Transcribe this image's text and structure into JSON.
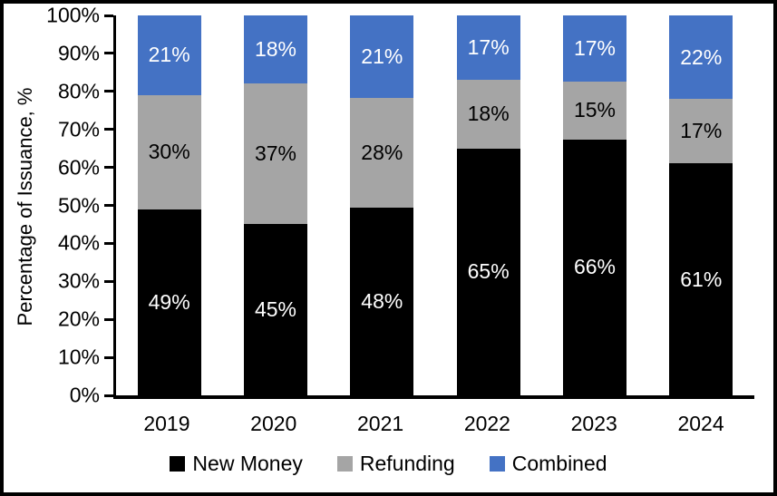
{
  "chart_data": {
    "type": "bar",
    "stacked": true,
    "percent_stacked": true,
    "title": "",
    "xlabel": "",
    "ylabel": "Percentage of Issuance, %",
    "categories": [
      "2019",
      "2020",
      "2021",
      "2022",
      "2023",
      "2024"
    ],
    "series": [
      {
        "name": "New Money",
        "color": "#000000",
        "label_color": "#ffffff",
        "values": [
          49,
          45,
          48,
          65,
          66,
          61
        ]
      },
      {
        "name": "Refunding",
        "color": "#A5A5A5",
        "label_color": "#000000",
        "values": [
          30,
          37,
          28,
          18,
          15,
          17
        ]
      },
      {
        "name": "Combined",
        "color": "#4472C4",
        "label_color": "#ffffff",
        "values": [
          21,
          18,
          21,
          17,
          17,
          22
        ]
      }
    ],
    "data_label_suffix": "%",
    "y_ticks": [
      "0%",
      "10%",
      "20%",
      "30%",
      "40%",
      "50%",
      "60%",
      "70%",
      "80%",
      "90%",
      "100%"
    ],
    "ylim": [
      0,
      100
    ],
    "grid": false,
    "legend_position": "bottom",
    "axis_color": "#000000",
    "background_color": "#ffffff",
    "border_color": "#000000"
  }
}
